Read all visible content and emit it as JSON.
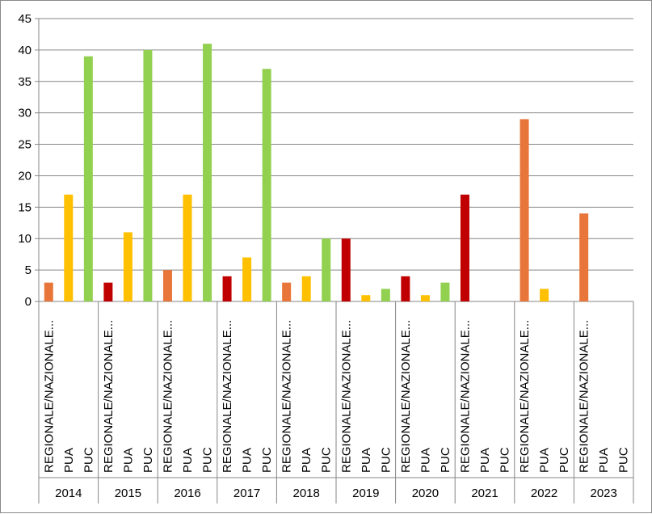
{
  "chart_data": {
    "type": "bar",
    "title": "",
    "xlabel": "",
    "ylabel": "",
    "ylim": [
      0,
      45
    ],
    "yticks": [
      0,
      5,
      10,
      15,
      20,
      25,
      30,
      35,
      40,
      45
    ],
    "grid": true,
    "legend": "none",
    "category_labels": [
      "REGIONALE/NAZIONALE...",
      "PUA",
      "PUC"
    ],
    "groups": [
      {
        "year": "2014",
        "bars": [
          {
            "category": "REGIONALE/NAZIONALE...",
            "value": 3,
            "color": "#E8763A"
          },
          {
            "category": "PUA",
            "value": 17,
            "color": "#FFC000"
          },
          {
            "category": "PUC",
            "value": 39,
            "color": "#92D050"
          }
        ]
      },
      {
        "year": "2015",
        "bars": [
          {
            "category": "REGIONALE/NAZIONALE...",
            "value": 3,
            "color": "#C00000"
          },
          {
            "category": "PUA",
            "value": 11,
            "color": "#FFC000"
          },
          {
            "category": "PUC",
            "value": 40,
            "color": "#92D050"
          }
        ]
      },
      {
        "year": "2016",
        "bars": [
          {
            "category": "REGIONALE/NAZIONALE...",
            "value": 5,
            "color": "#E8763A"
          },
          {
            "category": "PUA",
            "value": 17,
            "color": "#FFC000"
          },
          {
            "category": "PUC",
            "value": 41,
            "color": "#92D050"
          }
        ]
      },
      {
        "year": "2017",
        "bars": [
          {
            "category": "REGIONALE/NAZIONALE...",
            "value": 4,
            "color": "#C00000"
          },
          {
            "category": "PUA",
            "value": 7,
            "color": "#FFC000"
          },
          {
            "category": "PUC",
            "value": 37,
            "color": "#92D050"
          }
        ]
      },
      {
        "year": "2018",
        "bars": [
          {
            "category": "REGIONALE/NAZIONALE...",
            "value": 3,
            "color": "#E8763A"
          },
          {
            "category": "PUA",
            "value": 4,
            "color": "#FFC000"
          },
          {
            "category": "PUC",
            "value": 10,
            "color": "#92D050"
          }
        ]
      },
      {
        "year": "2019",
        "bars": [
          {
            "category": "REGIONALE/NAZIONALE...",
            "value": 10,
            "color": "#C00000"
          },
          {
            "category": "PUA",
            "value": 1,
            "color": "#FFC000"
          },
          {
            "category": "PUC",
            "value": 2,
            "color": "#92D050"
          }
        ]
      },
      {
        "year": "2020",
        "bars": [
          {
            "category": "REGIONALE/NAZIONALE...",
            "value": 4,
            "color": "#C00000"
          },
          {
            "category": "PUA",
            "value": 1,
            "color": "#FFC000"
          },
          {
            "category": "PUC",
            "value": 3,
            "color": "#92D050"
          }
        ]
      },
      {
        "year": "2021",
        "bars": [
          {
            "category": "REGIONALE/NAZIONALE...",
            "value": 17,
            "color": "#C00000"
          },
          {
            "category": "PUA",
            "value": 0,
            "color": "#FFC000"
          },
          {
            "category": "PUC",
            "value": 0,
            "color": "#92D050"
          }
        ]
      },
      {
        "year": "2022",
        "bars": [
          {
            "category": "REGIONALE/NAZIONALE...",
            "value": 29,
            "color": "#E8763A"
          },
          {
            "category": "PUA",
            "value": 2,
            "color": "#FFC000"
          },
          {
            "category": "PUC",
            "value": 0,
            "color": "#92D050"
          }
        ]
      },
      {
        "year": "2023",
        "bars": [
          {
            "category": "REGIONALE/NAZIONALE...",
            "value": 14,
            "color": "#E8763A"
          },
          {
            "category": "PUA",
            "value": 0,
            "color": "#FFC000"
          },
          {
            "category": "PUC",
            "value": 0,
            "color": "#92D050"
          }
        ]
      }
    ]
  }
}
